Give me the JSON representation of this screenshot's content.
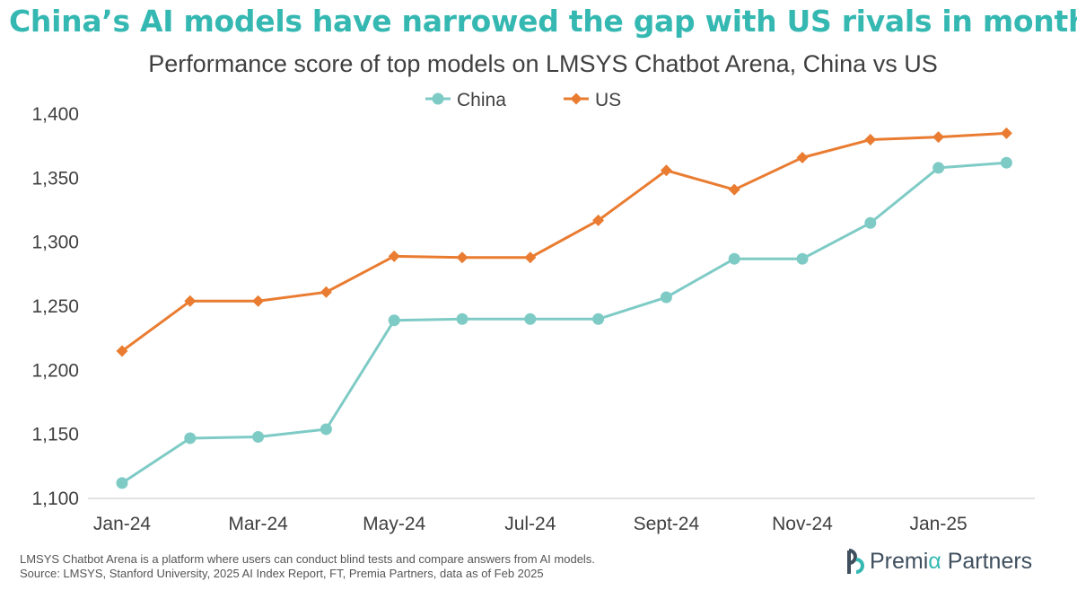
{
  "headline": "China’s AI models have narrowed the gap with US rivals in months",
  "footnotes": {
    "line1": "LMSYS Chatbot Arena is a platform where users can conduct blind tests and compare answers from AI models.",
    "line2": "Source: LMSYS, Stanford University, 2025 AI Index Report, FT, Premia Partners, data as of Feb 2025"
  },
  "logo": {
    "text_prefix": "Premi",
    "text_alpha": "α",
    "text_suffix": " Partners"
  },
  "colors": {
    "headline": "#35b8b2",
    "china": "#7ecbc6",
    "us": "#e97c31",
    "text": "#404040"
  },
  "chart_data": {
    "type": "line",
    "title": "Performance score of top models on LMSYS Chatbot Arena, China vs US",
    "xlabel": "",
    "ylabel": "",
    "x": [
      "Jan-24",
      "Feb-24",
      "Mar-24",
      "Apr-24",
      "May-24",
      "Jun-24",
      "Jul-24",
      "Aug-24",
      "Sept-24",
      "Oct-24",
      "Nov-24",
      "Dec-24",
      "Jan-25",
      "Feb-25"
    ],
    "x_tick_labels": [
      "Jan-24",
      "",
      "Mar-24",
      "",
      "May-24",
      "",
      "Jul-24",
      "",
      "Sept-24",
      "",
      "Nov-24",
      "",
      "Jan-25",
      ""
    ],
    "ylim": [
      1100,
      1400
    ],
    "y_ticks": [
      1100,
      1150,
      1200,
      1250,
      1300,
      1350,
      1400
    ],
    "y_tick_labels": [
      "1,100",
      "1,150",
      "1,200",
      "1,250",
      "1,300",
      "1,350",
      "1,400"
    ],
    "legend_position": "top-center",
    "grid": false,
    "series": [
      {
        "name": "China",
        "marker": "circle",
        "values": [
          1112,
          1147,
          1148,
          1154,
          1239,
          1240,
          1240,
          1240,
          1257,
          1287,
          1287,
          1315,
          1358,
          1362
        ]
      },
      {
        "name": "US",
        "marker": "diamond",
        "values": [
          1215,
          1254,
          1254,
          1261,
          1289,
          1288,
          1288,
          1317,
          1356,
          1341,
          1366,
          1380,
          1382,
          1385
        ]
      }
    ]
  }
}
